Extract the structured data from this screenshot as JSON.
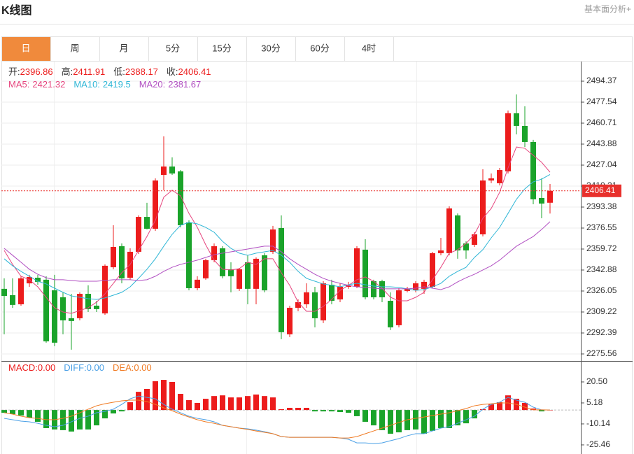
{
  "chart_data": {
    "type": "candlestick",
    "title": "K线图",
    "link": "基本面分析+",
    "tabs": [
      "日",
      "周",
      "月",
      "5分",
      "15分",
      "30分",
      "60分",
      "4时"
    ],
    "active_tab": 0,
    "up_color": "#ec1c1c",
    "down_color": "#1aa32a",
    "info": [
      {
        "label": "开:",
        "value": 2396.86
      },
      {
        "label": "高:",
        "value": 2411.91
      },
      {
        "label": "低:",
        "value": 2388.17
      },
      {
        "label": "收:",
        "value": 2406.41
      }
    ],
    "open": [
      2327.8,
      2322.7,
      2315.4,
      2332.2,
      2336.7,
      2335.1,
      2326.6,
      2321.0,
      2304.2,
      2304.2,
      2323.8,
      2314.3,
      2308.1,
      2345.1,
      2362.0,
      2336.7,
      2357.5,
      2385.5,
      2376.0,
      2419.2,
      2425.9,
      2422.0,
      2381.1,
      2328.3,
      2336.2,
      2350.8,
      2360.3,
      2343.5,
      2327.8,
      2349.1,
      2327.8,
      2354.7,
      2357.5,
      2376.6,
      2291.3,
      2312.6,
      2315.4,
      2325.0,
      2302.5,
      2331.1,
      2319.3,
      2329.4,
      2329.4,
      2359.2,
      2333.9,
      2333.9,
      2318.2,
      2298.6,
      2326.1,
      2326.6,
      2327.8,
      2329.4,
      2356.4,
      2356.4,
      2386.7,
      2364.2,
      2363.1,
      2371.5,
      2414.7,
      2412.5,
      2422.0,
      2468.6,
      2458.5,
      2445.6,
      2400.7,
      2396.86
    ],
    "high": [
      2336.2,
      2336.2,
      2337.9,
      2339.0,
      2339.0,
      2337.9,
      2339.0,
      2325.0,
      2323.8,
      2325.0,
      2330.6,
      2318.2,
      2347.4,
      2378.8,
      2364.2,
      2360.3,
      2386.7,
      2396.8,
      2416.4,
      2450.1,
      2433.2,
      2423.1,
      2382.7,
      2337.9,
      2351.9,
      2364.2,
      2362.0,
      2349.1,
      2344.6,
      2354.7,
      2353.0,
      2356.4,
      2378.3,
      2386.7,
      2314.3,
      2319.3,
      2332.2,
      2329.4,
      2333.9,
      2335.1,
      2332.2,
      2333.4,
      2362.0,
      2367.6,
      2335.1,
      2335.1,
      2325.0,
      2328.3,
      2329.4,
      2333.9,
      2335.1,
      2357.5,
      2368.7,
      2394.0,
      2388.3,
      2365.9,
      2373.2,
      2423.7,
      2420.3,
      2424.8,
      2470.8,
      2483.7,
      2474.2,
      2447.3,
      2416.4,
      2411.91
    ],
    "low": [
      2291.3,
      2312.6,
      2314.3,
      2329.4,
      2331.1,
      2284.6,
      2281.8,
      2291.3,
      2279.0,
      2302.5,
      2309.2,
      2309.2,
      2307.0,
      2343.5,
      2332.2,
      2335.1,
      2355.8,
      2375.4,
      2374.3,
      2406.9,
      2419.2,
      2377.1,
      2326.6,
      2326.6,
      2335.1,
      2349.1,
      2336.2,
      2325.0,
      2326.1,
      2315.4,
      2315.4,
      2325.0,
      2355.8,
      2287.4,
      2289.1,
      2309.8,
      2312.6,
      2296.9,
      2300.3,
      2315.4,
      2317.1,
      2327.8,
      2328.3,
      2319.3,
      2319.3,
      2317.1,
      2294.7,
      2296.9,
      2325.0,
      2325.0,
      2323.8,
      2328.3,
      2354.7,
      2354.7,
      2351.9,
      2351.9,
      2361.4,
      2369.8,
      2412.5,
      2410.8,
      2420.3,
      2451.7,
      2441.6,
      2395.6,
      2384.4,
      2388.17
    ],
    "close": [
      2322.1,
      2314.9,
      2336.2,
      2337.3,
      2333.4,
      2285.7,
      2284.6,
      2302.5,
      2302.0,
      2323.8,
      2311.5,
      2311.5,
      2346.3,
      2361.4,
      2336.2,
      2357.5,
      2385.5,
      2376.0,
      2414.7,
      2425.9,
      2420.3,
      2378.8,
      2328.3,
      2335.1,
      2350.8,
      2362.0,
      2337.9,
      2337.9,
      2343.5,
      2327.8,
      2351.9,
      2326.6,
      2375.4,
      2293.0,
      2312.6,
      2317.1,
      2325.0,
      2304.2,
      2332.2,
      2318.2,
      2329.4,
      2330.6,
      2360.3,
      2321.0,
      2321.0,
      2321.0,
      2296.9,
      2326.6,
      2327.8,
      2332.2,
      2333.4,
      2356.4,
      2358.6,
      2392.3,
      2358.6,
      2358.6,
      2371.5,
      2414.7,
      2416.4,
      2423.1,
      2468.6,
      2458.5,
      2445.6,
      2399.6,
      2396.2,
      2406.41
    ],
    "series": [
      {
        "name": "MA5:",
        "color": "#e6457e",
        "values": [
          2358.6,
          2347.4,
          2337.9,
          2335.1,
          2329.4,
          2321.0,
          2312.6,
          2309.2,
          2308.1,
          2310.4,
          2312.6,
          2317.1,
          2323.8,
          2332.2,
          2340.7,
          2347.4,
          2358.6,
          2369.8,
          2382.7,
          2401.3,
          2406.9,
          2402.4,
          2388.3,
          2377.1,
          2363.1,
          2350.8,
          2343.5,
          2342.9,
          2344.0,
          2349.1,
          2347.4,
          2351.9,
          2351.9,
          2340.7,
          2330.6,
          2317.1,
          2309.8,
          2309.8,
          2313.7,
          2319.3,
          2326.6,
          2330.6,
          2335.1,
          2337.3,
          2333.9,
          2328.3,
          2321.0,
          2318.2,
          2318.2,
          2321.0,
          2325.0,
          2335.1,
          2345.1,
          2356.4,
          2359.2,
          2364.2,
          2371.5,
          2384.4,
          2392.3,
          2405.2,
          2424.8,
          2441.6,
          2440.5,
          2434.9,
          2429.3,
          2421.32
        ]
      },
      {
        "name": "MA10:",
        "color": "#2fb6d6",
        "values": [
          2351.9,
          2346.3,
          2341.8,
          2337.9,
          2333.9,
          2331.7,
          2328.3,
          2325.0,
          2322.1,
          2321.0,
          2319.9,
          2319.3,
          2320.5,
          2322.7,
          2325.0,
          2329.4,
          2336.2,
          2343.5,
          2351.9,
          2362.0,
          2371.5,
          2378.8,
          2381.1,
          2379.9,
          2377.1,
          2373.2,
          2365.9,
          2360.3,
          2356.4,
          2354.7,
          2356.4,
          2357.5,
          2358.6,
          2354.7,
          2349.1,
          2341.8,
          2336.2,
          2333.9,
          2331.7,
          2330.6,
          2329.4,
          2331.1,
          2332.2,
          2331.1,
          2330.0,
          2329.4,
          2329.4,
          2328.9,
          2327.8,
          2326.6,
          2327.2,
          2329.4,
          2332.2,
          2337.9,
          2341.8,
          2345.1,
          2353.0,
          2359.2,
          2368.7,
          2377.1,
          2388.3,
          2399.6,
          2408.0,
          2413.6,
          2415.8,
          2419.5
        ]
      },
      {
        "name": "MA20:",
        "color": "#b14fc2",
        "values": [
          2360.3,
          2354.7,
          2349.1,
          2343.5,
          2339.5,
          2336.7,
          2335.1,
          2335.1,
          2334.5,
          2333.9,
          2333.9,
          2333.9,
          2334.5,
          2335.1,
          2335.1,
          2335.1,
          2334.5,
          2335.1,
          2337.9,
          2341.8,
          2345.1,
          2347.4,
          2349.1,
          2350.8,
          2353.0,
          2355.2,
          2356.4,
          2357.5,
          2358.6,
          2359.7,
          2360.9,
          2362.0,
          2362.0,
          2357.5,
          2351.9,
          2347.4,
          2343.5,
          2339.5,
          2336.2,
          2333.9,
          2332.2,
          2330.6,
          2329.4,
          2328.9,
          2328.3,
          2327.8,
          2327.8,
          2327.8,
          2327.8,
          2328.3,
          2329.4,
          2328.3,
          2327.2,
          2329.4,
          2333.4,
          2336.7,
          2339.5,
          2342.9,
          2346.3,
          2350.8,
          2356.4,
          2362.0,
          2365.9,
          2369.8,
          2375.4,
          2381.67
        ]
      }
    ],
    "ylim": [
      2270.5,
      2510.1
    ],
    "yticks": [
      2494.37,
      2477.54,
      2460.71,
      2443.88,
      2427.04,
      2410.21,
      2393.38,
      2376.55,
      2359.72,
      2342.88,
      2326.05,
      2309.22,
      2292.39,
      2275.56
    ],
    "grid": true,
    "last_price_color": "#e8302c",
    "macd": {
      "type": "bar",
      "name": "MACD:",
      "value_label": "0.00",
      "color": "#ec1c1c",
      "values": [
        -2.0,
        -3.0,
        -4.0,
        -5.6,
        -8.6,
        -13.2,
        -14.2,
        -14.7,
        -15.7,
        -14.2,
        -14.2,
        -11.2,
        -6.1,
        -2.5,
        -1.0,
        5.7,
        13.3,
        15.4,
        21.0,
        22.0,
        20.5,
        11.8,
        7.2,
        5.2,
        8.2,
        10.2,
        10.7,
        9.2,
        9.2,
        10.2,
        11.3,
        10.2,
        9.2,
        0.6,
        1.6,
        1.6,
        1.6,
        -1.0,
        -1.0,
        -1.0,
        -1.5,
        -2.0,
        -4.5,
        -8.6,
        -11.2,
        -14.7,
        -17.3,
        -16.3,
        -14.7,
        -14.2,
        -17.3,
        -15.2,
        -13.2,
        -13.2,
        -11.2,
        -9.7,
        -6.1,
        0.6,
        4.1,
        5.7,
        10.7,
        8.2,
        5.2,
        1.1,
        -1.0,
        0
      ],
      "series": [
        {
          "name": "DIFF:",
          "value_label": "0.00",
          "color": "#4aa0e6",
          "values": [
            -6.1,
            -7.1,
            -8.1,
            -8.6,
            -9.7,
            -11.2,
            -12.2,
            -11.2,
            -8.6,
            -6.1,
            -4.5,
            -2.0,
            -1.0,
            0.6,
            4.1,
            8.2,
            10.2,
            9.2,
            8.2,
            4.1,
            0.6,
            -2.0,
            -4.5,
            -6.1,
            -7.1,
            -8.6,
            -11.2,
            -12.2,
            -13.2,
            -13.7,
            -14.7,
            -15.8,
            -17.3,
            -19.4,
            -19.9,
            -19.9,
            -19.9,
            -19.9,
            -19.9,
            -19.9,
            -20.4,
            -21.4,
            -24.0,
            -24.0,
            -24.5,
            -24.0,
            -22.4,
            -20.9,
            -18.8,
            -17.3,
            -17.3,
            -15.3,
            -13.2,
            -12.2,
            -9.7,
            -7.1,
            -4.5,
            0.6,
            4.1,
            5.7,
            9.2,
            7.2,
            5.7,
            2.1,
            0.1,
            0
          ]
        },
        {
          "name": "DEA:",
          "value_label": "0.00",
          "color": "#f07a22",
          "values": [
            -2.0,
            -3.0,
            -4.5,
            -5.6,
            -6.1,
            -7.1,
            -7.1,
            -6.1,
            -4.5,
            -2.0,
            0.6,
            3.1,
            4.6,
            5.7,
            6.7,
            7.2,
            7.2,
            6.2,
            4.1,
            1.6,
            -0.5,
            -3.0,
            -5.1,
            -7.1,
            -8.6,
            -9.7,
            -11.2,
            -12.2,
            -13.2,
            -14.2,
            -15.3,
            -16.3,
            -17.3,
            -19.4,
            -19.9,
            -19.9,
            -19.9,
            -19.9,
            -19.9,
            -19.9,
            -20.4,
            -20.4,
            -19.4,
            -17.3,
            -15.3,
            -13.2,
            -11.2,
            -9.1,
            -7.1,
            -6.1,
            -5.1,
            -4.0,
            -3.0,
            -2.0,
            -0.5,
            1.1,
            3.1,
            4.1,
            4.6,
            5.2,
            5.2,
            4.1,
            2.1,
            0.1,
            0.1,
            0
          ]
        }
      ],
      "ylim": [
        -31.6,
        35.3
      ],
      "yticks": [
        {
          "value": 20.5,
          "label": "20.50"
        },
        5.18,
        -10.14,
        -25.46
      ]
    }
  }
}
